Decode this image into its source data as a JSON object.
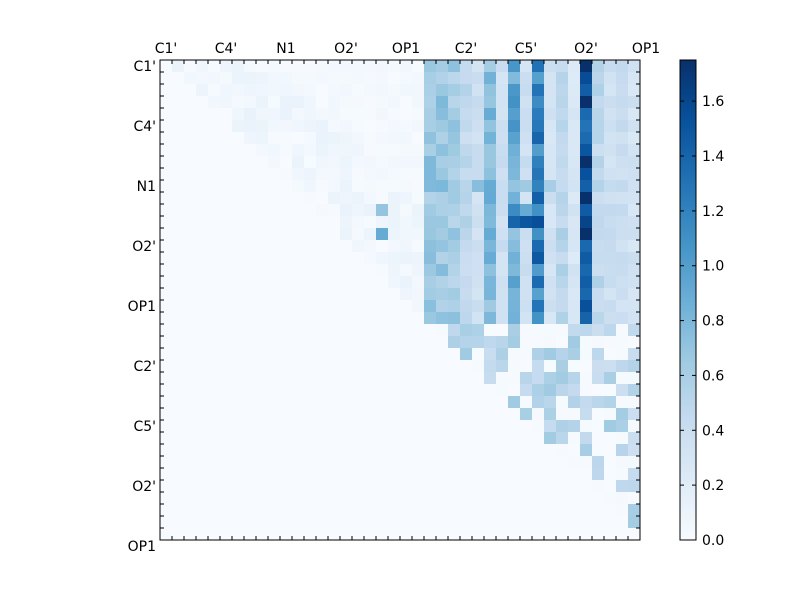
{
  "chart_data": {
    "type": "heatmap",
    "title": "",
    "xlabel": "",
    "ylabel": "",
    "cmap": "Blues",
    "grid": false,
    "n": 40,
    "x_tick_labels": [
      "C1'",
      "C4'",
      "N1",
      "O2'",
      "OP1",
      "C2'",
      "C5'",
      "O2'",
      "OP1"
    ],
    "y_tick_labels": [
      "C1'",
      "C4'",
      "N1",
      "O2'",
      "OP1",
      "C2'",
      "C5'",
      "O2'",
      "OP1"
    ],
    "colorbar": {
      "min": 0.0,
      "max": 1.75,
      "tick_labels": [
        "0.0",
        "0.2",
        "0.4",
        "0.6",
        "0.8",
        "1.0",
        "1.2",
        "1.4",
        "1.6"
      ]
    },
    "upper_block_column_values": [
      0.7,
      0.7,
      0.65,
      0.5,
      0.4,
      0.8,
      0.4,
      1.0,
      0.4,
      1.3,
      0.35,
      0.55,
      0.3,
      1.7,
      0.5,
      0.4,
      0.4,
      0.35,
      0.35,
      0.3,
      0.3,
      0.3,
      0.3,
      0.35
    ],
    "strong_cells": [
      [
        13,
        29,
        1.4
      ],
      [
        13,
        30,
        1.5
      ],
      [
        13,
        31,
        1.55
      ],
      [
        12,
        31,
        1.1
      ],
      [
        10,
        32,
        0.6
      ],
      [
        12,
        30,
        0.9
      ],
      [
        14,
        29,
        0.7
      ],
      [
        12,
        18,
        0.7
      ],
      [
        14,
        18,
        0.9
      ],
      [
        12,
        27,
        0.8
      ],
      [
        10,
        26,
        0.75
      ],
      [
        10,
        27,
        0.9
      ],
      [
        10,
        29,
        0.7
      ],
      [
        10,
        30,
        0.65
      ]
    ]
  }
}
